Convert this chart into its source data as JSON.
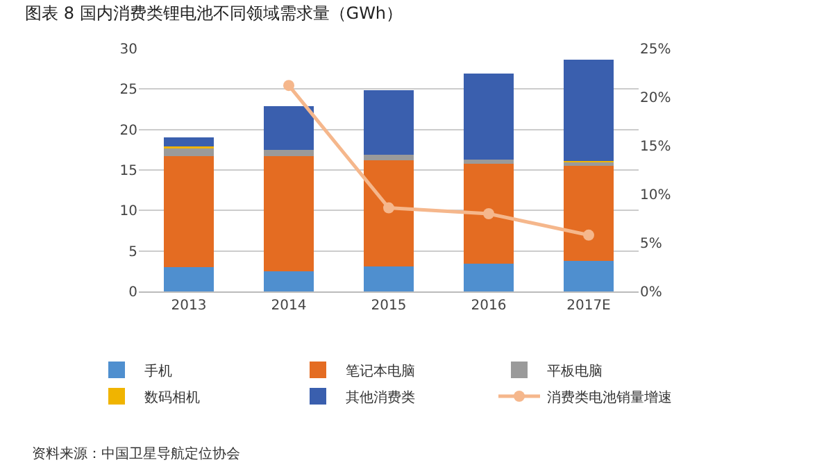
{
  "chart_data": {
    "type": "bar",
    "title": "图表 8 国内消费类锂电池不同领域需求量（GWh）",
    "categories": [
      "2013",
      "2014",
      "2015",
      "2016",
      "2017E"
    ],
    "stacked": true,
    "series": [
      {
        "name": "手机",
        "color": "#4f8fcf",
        "values": [
          3.0,
          2.5,
          3.1,
          3.4,
          3.8
        ]
      },
      {
        "name": "笔记本电脑",
        "color": "#e46c22",
        "values": [
          13.7,
          14.2,
          13.1,
          12.4,
          11.7
        ]
      },
      {
        "name": "平板电脑",
        "color": "#9a9a9a",
        "values": [
          1.0,
          0.8,
          0.7,
          0.5,
          0.5
        ]
      },
      {
        "name": "数码相机",
        "color": "#f0b400",
        "values": [
          0.2,
          null,
          null,
          null,
          0.1
        ]
      },
      {
        "name": "其他消费类",
        "color": "#3a5fae",
        "values": [
          1.1,
          5.4,
          8.0,
          10.6,
          12.5
        ]
      },
      {
        "name": "消费类电池销量增速",
        "type": "line",
        "axis": "y2",
        "color": "#f5b78c",
        "marker": "circle",
        "values": [
          null,
          21.2,
          8.6,
          8.0,
          5.8
        ]
      }
    ],
    "ylim": [
      0,
      30
    ],
    "yticks": [
      0,
      5,
      10,
      15,
      20,
      25,
      30
    ],
    "y2lim": [
      0,
      25
    ],
    "y2ticks": [
      {
        "value": 0,
        "label": "0%"
      },
      {
        "value": 5,
        "label": "5%"
      },
      {
        "value": 10,
        "label": "10%"
      },
      {
        "value": 15,
        "label": "15%"
      },
      {
        "value": 20,
        "label": "20%"
      },
      {
        "value": 25,
        "label": "25%"
      }
    ],
    "grid": "y",
    "legend": "bottom",
    "annotations": [
      "资料来源：中国卫星导航定位协会"
    ]
  }
}
